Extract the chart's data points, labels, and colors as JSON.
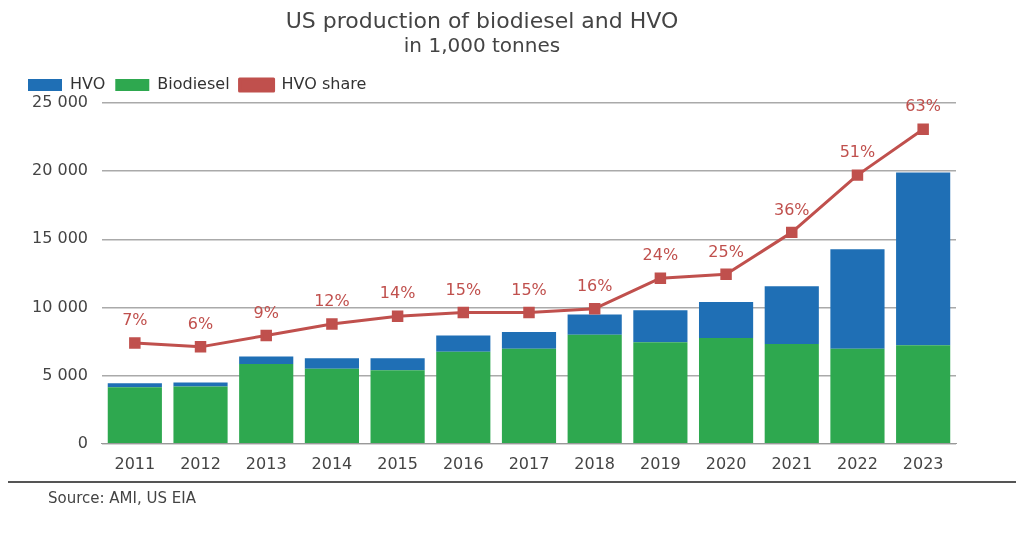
{
  "chart_data": {
    "type": "bar",
    "title": "US production of biodiesel and HVO",
    "subtitle": "in 1,000 tonnes",
    "annotations": [
      "Source: AMI, US EIA"
    ],
    "categories": [
      "2011",
      "2012",
      "2013",
      "2014",
      "2015",
      "2016",
      "2017",
      "2018",
      "2019",
      "2020",
      "2021",
      "2022",
      "2023"
    ],
    "stacked": true,
    "legend": "top left",
    "grid": "y",
    "ylim": [
      0,
      25000
    ],
    "yticks": [
      {
        "value": 0,
        "label": "0"
      },
      {
        "value": 5000,
        "label": "5 000"
      },
      {
        "value": 10000,
        "label": "10 000"
      },
      {
        "value": 15000,
        "label": "15 000"
      },
      {
        "value": 20000,
        "label": "20 000"
      },
      {
        "value": 25000,
        "label": "25 000"
      }
    ],
    "y2lim": [
      -19.4,
      69.9
    ],
    "series": [
      {
        "name": "Biodiesel",
        "color": "#2ea84f",
        "values": [
          4150,
          4200,
          5850,
          5500,
          5400,
          6750,
          6970,
          8000,
          7450,
          7770,
          7330,
          6980,
          7230
        ]
      },
      {
        "name": "HVO",
        "color": "#1f6fb5",
        "values": [
          300,
          300,
          550,
          780,
          880,
          1190,
          1230,
          1480,
          2350,
          2630,
          4220,
          7290,
          12670
        ]
      },
      {
        "name": "HVO share",
        "type": "line",
        "axis": "y2",
        "color": "#c0504d",
        "marker": "square",
        "values": [
          7,
          6,
          9,
          12,
          14,
          15,
          15,
          16,
          24,
          25,
          36,
          51,
          63
        ],
        "value_labels": [
          "7%",
          "6%",
          "9%",
          "12%",
          "14%",
          "15%",
          "15%",
          "16%",
          "24%",
          "25%",
          "36%",
          "51%",
          "63%"
        ]
      }
    ]
  }
}
